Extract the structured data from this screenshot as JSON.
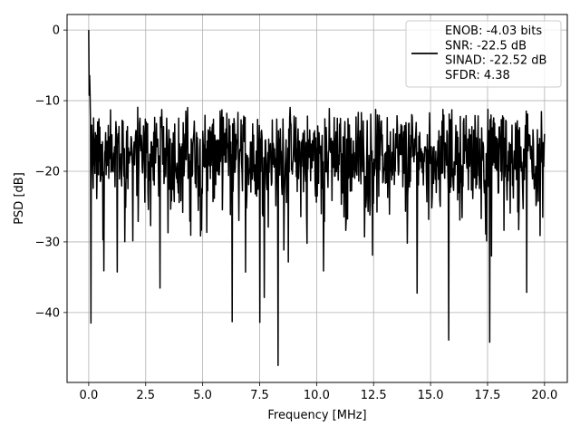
{
  "chart_data": {
    "type": "line",
    "title": "",
    "xlabel": "Frequency [MHz]",
    "ylabel": "PSD [dB]",
    "xlim": [
      -0.95,
      21.0
    ],
    "ylim": [
      -49.9,
      2.2
    ],
    "x_ticks": [
      0.0,
      2.5,
      5.0,
      7.5,
      10.0,
      12.5,
      15.0,
      17.5,
      20.0
    ],
    "x_tick_labels": [
      "0.0",
      "2.5",
      "5.0",
      "7.5",
      "10.0",
      "12.5",
      "15.0",
      "17.5",
      "20.0"
    ],
    "y_ticks": [
      0,
      -10,
      -20,
      -30,
      -40
    ],
    "y_tick_labels": [
      "0",
      "−10",
      "−20",
      "−30",
      "−40"
    ],
    "grid": true,
    "legend_position": "top-right",
    "series": [
      {
        "name": "",
        "color": "#000000",
        "x_range": [
          0.0,
          20.0
        ],
        "n_points": 1024,
        "noise_floor_db": -18,
        "peak_db": 0,
        "min_db": -47.5,
        "notable_minima": [
          {
            "x": 0.1,
            "y": -41.5
          },
          {
            "x": 6.3,
            "y": -41.3
          },
          {
            "x": 7.5,
            "y": -41.4
          },
          {
            "x": 8.3,
            "y": -47.5
          },
          {
            "x": 15.8,
            "y": -43.9
          },
          {
            "x": 17.6,
            "y": -44.2
          }
        ]
      }
    ],
    "legend_text": [
      "ENOB: -4.03 bits",
      "SNR: -22.5 dB",
      "SINAD: -22.52 dB",
      "SFDR: 4.38"
    ]
  }
}
